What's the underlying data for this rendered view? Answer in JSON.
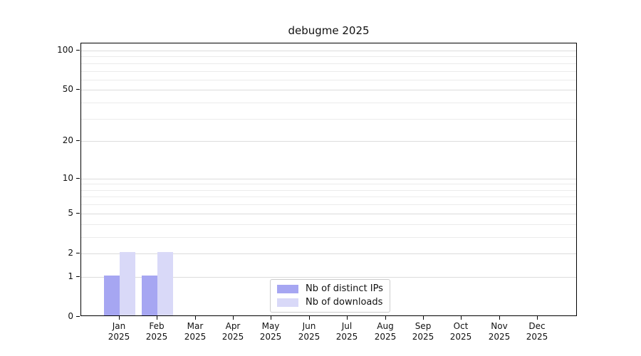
{
  "figure": {
    "background": "#ffffff"
  },
  "chart_data": {
    "type": "bar",
    "title": "debugme 2025",
    "categories": [
      "Jan 2025",
      "Feb 2025",
      "Mar 2025",
      "Apr 2025",
      "May 2025",
      "Jun 2025",
      "Jul 2025",
      "Aug 2025",
      "Sep 2025",
      "Oct 2025",
      "Nov 2025",
      "Dec 2025"
    ],
    "x": {
      "months": [
        "Jan",
        "Feb",
        "Mar",
        "Apr",
        "May",
        "Jun",
        "Jul",
        "Aug",
        "Sep",
        "Oct",
        "Nov",
        "Dec"
      ],
      "year": "2025"
    },
    "series": [
      {
        "name": "Nb of distinct IPs",
        "slug": "distinct-ips",
        "color": "#a6a6f2",
        "values": [
          1,
          1,
          0,
          0,
          0,
          0,
          0,
          0,
          0,
          0,
          0,
          0
        ]
      },
      {
        "name": "Nb of downloads",
        "slug": "downloads",
        "color": "#d9d9f8",
        "values": [
          2,
          2,
          0,
          0,
          0,
          0,
          0,
          0,
          0,
          0,
          0,
          0
        ]
      }
    ],
    "yscale": "log1p",
    "ylim": [
      0,
      114
    ],
    "y_ticks": [
      0,
      1,
      2,
      5,
      10,
      20,
      50,
      100
    ],
    "y_minor_ticks": [
      3,
      4,
      6,
      7,
      8,
      9,
      30,
      40,
      60,
      70,
      80,
      90
    ],
    "grid": "horizontal",
    "legend_position": "inside-lower-center"
  },
  "colors": {
    "spine": "#000000",
    "grid_major": "#dcdcdc",
    "grid_minor": "#ebebeb",
    "text": "#111111",
    "legend_border": "#cccccc",
    "legend_bg": "#ffffff",
    "bar_distinct_ips": "#a6a6f2",
    "bar_downloads": "#d9d9f8"
  }
}
